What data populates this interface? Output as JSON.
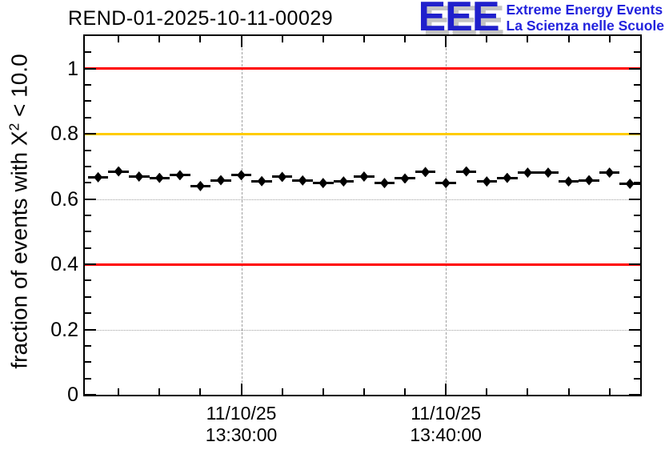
{
  "header": {
    "plot_title": "REND-01-2025-10-11-00029",
    "logo": {
      "acronym": "EEE",
      "tagline_line1": "Extreme Energy Events",
      "tagline_line2": "La Scienza nelle Scuole",
      "text_color": "#2222dd",
      "acronym_color": "#2020cc",
      "shadow_color": "#c4c4c4"
    }
  },
  "chart_data": {
    "type": "scatter",
    "title": "REND-01-2025-10-11-00029",
    "ylabel": {
      "prefix": "fraction of events with X",
      "sup": "2",
      "suffix": " < 10.0"
    },
    "ylim": [
      0,
      1.1
    ],
    "y_major_ticks": [
      {
        "value": 0,
        "label": "0"
      },
      {
        "value": 0.2,
        "label": "0.2"
      },
      {
        "value": 0.4,
        "label": "0.4"
      },
      {
        "value": 0.6,
        "label": "0.6"
      },
      {
        "value": 0.8,
        "label": "0.8"
      },
      {
        "value": 1,
        "label": "1"
      }
    ],
    "y_minor_tick_step": 0.05,
    "x_axis": {
      "range_minutes_rel_1330": [
        -7.65,
        19.5
      ],
      "major_ticks": [
        {
          "t": 0,
          "date": "11/10/25",
          "time": "13:30:00"
        },
        {
          "t": 10,
          "date": "11/10/25",
          "time": "13:40:00"
        }
      ],
      "minor_tick_step_minutes": 2
    },
    "grid": {
      "h_style": "dotted",
      "v_style": "dashed",
      "color": "#a0a0a0"
    },
    "reference_lines": [
      {
        "name": "alarm-high",
        "y": 1.0,
        "color": "#ff0000"
      },
      {
        "name": "warning",
        "y": 0.8,
        "color": "#ffcc00"
      },
      {
        "name": "alarm-low",
        "y": 0.4,
        "color": "#ff0000"
      }
    ],
    "series": [
      {
        "name": "chi2-fraction-per-minute",
        "marker": "filled-diamond",
        "color": "#000000",
        "bin_halfwidth_minutes": 0.5,
        "points": [
          {
            "t": -7,
            "y": 0.667
          },
          {
            "t": -6,
            "y": 0.685
          },
          {
            "t": -5,
            "y": 0.669
          },
          {
            "t": -4,
            "y": 0.665
          },
          {
            "t": -3,
            "y": 0.673
          },
          {
            "t": -2,
            "y": 0.64
          },
          {
            "t": -1,
            "y": 0.658
          },
          {
            "t": 0,
            "y": 0.673
          },
          {
            "t": 1,
            "y": 0.655
          },
          {
            "t": 2,
            "y": 0.668
          },
          {
            "t": 3,
            "y": 0.657
          },
          {
            "t": 4,
            "y": 0.649
          },
          {
            "t": 5,
            "y": 0.654
          },
          {
            "t": 6,
            "y": 0.669
          },
          {
            "t": 7,
            "y": 0.649
          },
          {
            "t": 8,
            "y": 0.663
          },
          {
            "t": 9,
            "y": 0.683
          },
          {
            "t": 10,
            "y": 0.649
          },
          {
            "t": 11,
            "y": 0.685
          },
          {
            "t": 12,
            "y": 0.654
          },
          {
            "t": 13,
            "y": 0.665
          },
          {
            "t": 14,
            "y": 0.681
          },
          {
            "t": 15,
            "y": 0.681
          },
          {
            "t": 16,
            "y": 0.654
          },
          {
            "t": 17,
            "y": 0.658
          },
          {
            "t": 18,
            "y": 0.681
          },
          {
            "t": 19,
            "y": 0.647
          }
        ]
      }
    ]
  }
}
